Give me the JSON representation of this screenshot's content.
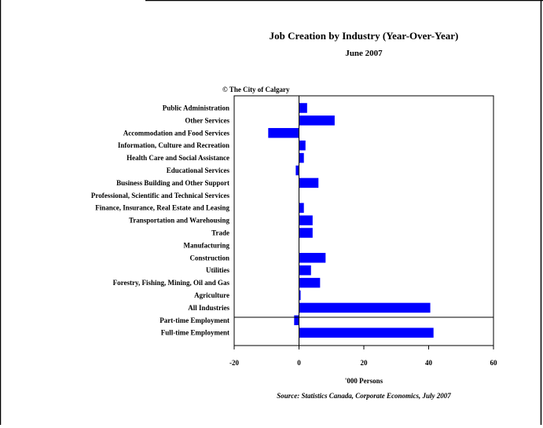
{
  "chart_data": {
    "type": "bar",
    "orientation": "horizontal",
    "title": "Job Creation by Industry (Year-Over-Year)",
    "subtitle": "June 2007",
    "copyright": "© The City of Calgary",
    "xlabel": "'000 Persons",
    "source": "Source: Statistics Canada, Corporate Economics, July 2007",
    "xlim": [
      -20,
      60
    ],
    "xticks": [
      "-20",
      "0",
      "20",
      "40",
      "60"
    ],
    "bar_color": "#0000FF",
    "grid": false,
    "categories": [
      "Public Administration",
      "Other Services",
      "Accommodation and Food Services",
      "Information, Culture and Recreation",
      "Health Care and Social Assistance",
      "Educational Services",
      "Business Building and Other Support",
      "Professional, Scientific and Technical Services",
      "Finance, Insurance, Real Estate and Leasing",
      "Transportation and Warehousing",
      "Trade",
      "Manufacturing",
      "Construction",
      "Utilities",
      "Forestry, Fishing, Mining, Oil and Gas",
      "Agriculture",
      "All Industries",
      "Part-time Employment",
      "Full-time Employment"
    ],
    "values": [
      2.5,
      11,
      -9.5,
      2,
      1.5,
      -1,
      6,
      0,
      1.5,
      4.2,
      4.2,
      0,
      8.2,
      3.7,
      6.5,
      0.5,
      40.5,
      -1.5,
      41.5
    ]
  }
}
